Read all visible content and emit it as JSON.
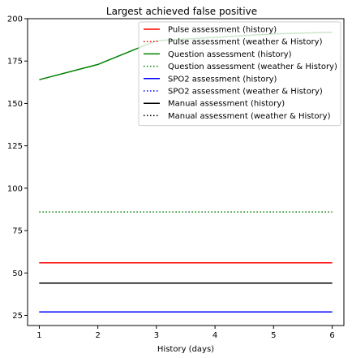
{
  "chart_data": {
    "type": "line",
    "title": "Largest achieved false positive",
    "xlabel": "History (days)",
    "ylabel": "",
    "xlim": [
      0.8,
      6.2
    ],
    "ylim": [
      19,
      200
    ],
    "xticks": [
      1,
      2,
      3,
      4,
      5,
      6
    ],
    "yticks": [
      25,
      50,
      75,
      100,
      125,
      150,
      175,
      200
    ],
    "grid": false,
    "legend_position": "top-right",
    "x": [
      1,
      2,
      3,
      4,
      5,
      6
    ],
    "series": [
      {
        "name": "Pulse assessment (history)",
        "color": "#ff0000",
        "style": "solid",
        "values": [
          56,
          56,
          56,
          56,
          56,
          56
        ]
      },
      {
        "name": "Pulse assessment (weather & History)",
        "color": "#ff0000",
        "style": "dotted",
        "values": [
          56,
          56,
          56,
          56,
          56,
          56
        ]
      },
      {
        "name": "Question assessment (history)",
        "color": "#008000",
        "style": "solid",
        "values": [
          164,
          173,
          187,
          189,
          191,
          192
        ]
      },
      {
        "name": "Question assessment (weather & History)",
        "color": "#008000",
        "style": "dotted",
        "values": [
          86,
          86,
          86,
          86,
          86,
          86
        ]
      },
      {
        "name": "SPO2 assessment (history)",
        "color": "#0000ff",
        "style": "solid",
        "values": [
          27,
          27,
          27,
          27,
          27,
          27
        ]
      },
      {
        "name": "SPO2 assessment (weather & History)",
        "color": "#0000ff",
        "style": "dotted",
        "values": [
          27,
          27,
          27,
          27,
          27,
          27
        ]
      },
      {
        "name": "Manual assessment (history)",
        "color": "#000000",
        "style": "solid",
        "values": [
          44,
          44,
          44,
          44,
          44,
          44
        ]
      },
      {
        "name": "Manual assessment (weather & History)",
        "color": "#000000",
        "style": "dotted",
        "values": [
          44,
          44,
          44,
          44,
          44,
          44
        ]
      }
    ]
  }
}
